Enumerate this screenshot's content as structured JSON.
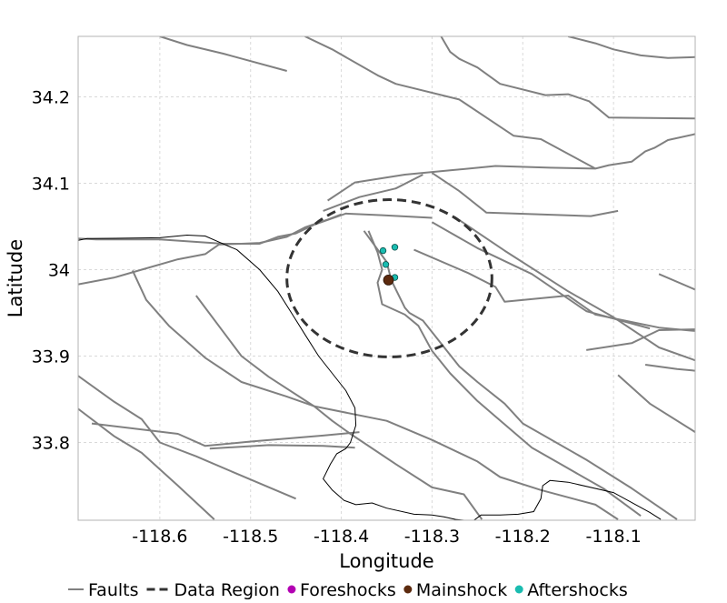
{
  "chart_data": {
    "type": "map-scatter",
    "xlabel": "Longitude",
    "ylabel": "Latitude",
    "xlim": [
      -118.69,
      -118.01
    ],
    "ylim": [
      33.71,
      34.27
    ],
    "xticks": [
      -118.6,
      -118.5,
      -118.4,
      -118.3,
      -118.2,
      -118.1
    ],
    "xtick_labels": [
      "-118.6",
      "-118.5",
      "-118.4",
      "-118.3",
      "-118.2",
      "-118.1"
    ],
    "yticks": [
      33.8,
      33.9,
      34.0,
      34.1,
      34.2
    ],
    "ytick_labels": [
      "33.8",
      "33.9",
      "34",
      "34.1",
      "34.2"
    ],
    "grid": true,
    "legend": {
      "placement": "bottom",
      "entries": [
        {
          "label": "Faults",
          "style": "solid-line",
          "color": "#808080"
        },
        {
          "label": "Data Region",
          "style": "dashed-line",
          "color": "#333333"
        },
        {
          "label": "Foreshocks",
          "style": "dot",
          "color": "#b300b3"
        },
        {
          "label": "Mainshock",
          "style": "dot",
          "color": "#5c2a0e"
        },
        {
          "label": "Aftershocks",
          "style": "dot",
          "color": "#1abcb0"
        }
      ]
    },
    "colors": {
      "faults": "#808080",
      "coastline": "#000000",
      "data_region": "#333333",
      "mainshock": "#5c2a0e",
      "aftershocks": "#1abcb0",
      "foreshocks": "#b300b3",
      "grid": "#d9d9d9"
    },
    "data_region": {
      "center": [
        -118.347,
        33.99
      ],
      "radius_lon": 0.113,
      "radius_lat": 0.091
    },
    "mainshock": [
      {
        "lon": -118.348,
        "lat": 33.988
      }
    ],
    "aftershocks": [
      {
        "lon": -118.354,
        "lat": 34.022
      },
      {
        "lon": -118.341,
        "lat": 34.026
      },
      {
        "lon": -118.351,
        "lat": 34.006
      },
      {
        "lon": -118.341,
        "lat": 33.991
      }
    ],
    "foreshocks": [],
    "coastline": [
      [
        -118.69,
        34.034
      ],
      [
        -118.68,
        34.036
      ],
      [
        -118.6,
        34.037
      ],
      [
        -118.57,
        34.04
      ],
      [
        -118.55,
        34.039
      ],
      [
        -118.535,
        34.032
      ],
      [
        -118.515,
        34.023
      ],
      [
        -118.49,
        34.0
      ],
      [
        -118.47,
        33.975
      ],
      [
        -118.455,
        33.95
      ],
      [
        -118.44,
        33.925
      ],
      [
        -118.425,
        33.9
      ],
      [
        -118.41,
        33.88
      ],
      [
        -118.395,
        33.86
      ],
      [
        -118.385,
        33.84
      ],
      [
        -118.384,
        33.82
      ],
      [
        -118.39,
        33.8
      ],
      [
        -118.395,
        33.793
      ],
      [
        -118.405,
        33.787
      ],
      [
        -118.412,
        33.775
      ],
      [
        -118.42,
        33.758
      ],
      [
        -118.41,
        33.745
      ],
      [
        -118.397,
        33.733
      ],
      [
        -118.384,
        33.728
      ],
      [
        -118.366,
        33.73
      ],
      [
        -118.35,
        33.724
      ],
      [
        -118.32,
        33.717
      ],
      [
        -118.3,
        33.716
      ],
      [
        -118.287,
        33.714
      ],
      [
        -118.274,
        33.711
      ],
      [
        -118.255,
        33.709
      ],
      [
        -118.246,
        33.716
      ],
      [
        -118.225,
        33.716
      ],
      [
        -118.205,
        33.717
      ],
      [
        -118.188,
        33.72
      ],
      [
        -118.18,
        33.735
      ],
      [
        -118.178,
        33.75
      ],
      [
        -118.17,
        33.756
      ],
      [
        -118.15,
        33.754
      ],
      [
        -118.1,
        33.742
      ],
      [
        -118.06,
        33.719
      ],
      [
        -118.048,
        33.711
      ]
    ],
    "faults": [
      [
        [
          -118.6,
          34.27
        ],
        [
          -118.57,
          34.26
        ],
        [
          -118.53,
          34.25
        ],
        [
          -118.46,
          34.23
        ]
      ],
      [
        [
          -118.44,
          34.27
        ],
        [
          -118.41,
          34.255
        ],
        [
          -118.36,
          34.225
        ],
        [
          -118.34,
          34.215
        ],
        [
          -118.27,
          34.197
        ],
        [
          -118.21,
          34.155
        ],
        [
          -118.18,
          34.151
        ],
        [
          -118.12,
          34.117
        ]
      ],
      [
        [
          -118.29,
          34.27
        ],
        [
          -118.28,
          34.252
        ],
        [
          -118.27,
          34.244
        ],
        [
          -118.25,
          34.234
        ],
        [
          -118.225,
          34.215
        ],
        [
          -118.175,
          34.202
        ],
        [
          -118.15,
          34.203
        ],
        [
          -118.127,
          34.195
        ],
        [
          -118.105,
          34.176
        ],
        [
          -118.01,
          34.175
        ]
      ],
      [
        [
          -118.15,
          34.27
        ],
        [
          -118.12,
          34.262
        ],
        [
          -118.1,
          34.255
        ],
        [
          -118.07,
          34.248
        ],
        [
          -118.04,
          34.245
        ],
        [
          -118.01,
          34.246
        ]
      ],
      [
        [
          -118.69,
          34.036
        ],
        [
          -118.67,
          34.035
        ],
        [
          -118.6,
          34.035
        ],
        [
          -118.53,
          34.03
        ],
        [
          -118.49,
          34.03
        ],
        [
          -118.47,
          34.038
        ],
        [
          -118.45,
          34.042
        ],
        [
          -118.43,
          34.052
        ],
        [
          -118.395,
          34.065
        ],
        [
          -118.355,
          34.063
        ],
        [
          -118.3,
          34.06
        ]
      ],
      [
        [
          -118.69,
          33.983
        ],
        [
          -118.65,
          33.991
        ],
        [
          -118.62,
          34.0
        ],
        [
          -118.58,
          34.012
        ],
        [
          -118.55,
          34.018
        ],
        [
          -118.535,
          34.029
        ],
        [
          -118.51,
          34.03
        ],
        [
          -118.49,
          34.031
        ],
        [
          -118.46,
          34.038
        ],
        [
          -118.44,
          34.049
        ],
        [
          -118.415,
          34.058
        ],
        [
          -118.4,
          34.064
        ]
      ],
      [
        [
          -118.415,
          34.08
        ],
        [
          -118.385,
          34.101
        ],
        [
          -118.33,
          34.11
        ],
        [
          -118.28,
          34.115
        ],
        [
          -118.23,
          34.12
        ],
        [
          -118.17,
          34.118
        ],
        [
          -118.12,
          34.117
        ],
        [
          -118.105,
          34.121
        ],
        [
          -118.08,
          34.125
        ],
        [
          -118.065,
          34.137
        ],
        [
          -118.055,
          34.141
        ],
        [
          -118.04,
          34.15
        ],
        [
          -118.01,
          34.157
        ]
      ],
      [
        [
          -118.42,
          34.068
        ],
        [
          -118.38,
          34.084
        ],
        [
          -118.34,
          34.094
        ],
        [
          -118.31,
          34.11
        ]
      ],
      [
        [
          -118.3,
          34.112
        ],
        [
          -118.27,
          34.091
        ],
        [
          -118.24,
          34.066
        ],
        [
          -118.18,
          34.064
        ],
        [
          -118.125,
          34.062
        ],
        [
          -118.095,
          34.068
        ]
      ],
      [
        [
          -118.375,
          34.045
        ],
        [
          -118.35,
          34.009
        ],
        [
          -118.345,
          33.988
        ],
        [
          -118.33,
          33.956
        ],
        [
          -118.325,
          33.95
        ],
        [
          -118.31,
          33.941
        ],
        [
          -118.27,
          33.888
        ],
        [
          -118.25,
          33.87
        ],
        [
          -118.22,
          33.845
        ],
        [
          -118.2,
          33.822
        ],
        [
          -118.13,
          33.78
        ],
        [
          -118.08,
          33.747
        ],
        [
          -118.03,
          33.711
        ]
      ],
      [
        [
          -118.37,
          34.045
        ],
        [
          -118.36,
          34.02
        ],
        [
          -118.355,
          34.0
        ],
        [
          -118.36,
          33.985
        ],
        [
          -118.355,
          33.96
        ],
        [
          -118.33,
          33.948
        ],
        [
          -118.315,
          33.935
        ],
        [
          -118.3,
          33.906
        ],
        [
          -118.28,
          33.88
        ],
        [
          -118.25,
          33.848
        ],
        [
          -118.23,
          33.83
        ],
        [
          -118.19,
          33.794
        ],
        [
          -118.16,
          33.776
        ],
        [
          -118.11,
          33.746
        ],
        [
          -118.07,
          33.715
        ]
      ],
      [
        [
          -118.32,
          34.023
        ],
        [
          -118.26,
          33.996
        ],
        [
          -118.23,
          33.98
        ],
        [
          -118.22,
          33.963
        ],
        [
          -118.15,
          33.97
        ],
        [
          -118.12,
          33.948
        ],
        [
          -118.05,
          33.933
        ],
        [
          -118.01,
          33.929
        ]
      ],
      [
        [
          -118.3,
          34.055
        ],
        [
          -118.25,
          34.025
        ],
        [
          -118.19,
          33.995
        ],
        [
          -118.13,
          33.952
        ],
        [
          -118.06,
          33.932
        ]
      ],
      [
        [
          -118.275,
          34.061
        ],
        [
          -118.22,
          34.022
        ],
        [
          -118.15,
          33.975
        ],
        [
          -118.1,
          33.945
        ],
        [
          -118.05,
          33.91
        ],
        [
          -118.01,
          33.895
        ]
      ],
      [
        [
          -118.675,
          33.822
        ],
        [
          -118.58,
          33.81
        ],
        [
          -118.55,
          33.796
        ],
        [
          -118.5,
          33.801
        ],
        [
          -118.42,
          33.808
        ],
        [
          -118.38,
          33.812
        ]
      ],
      [
        [
          -118.545,
          33.793
        ],
        [
          -118.48,
          33.797
        ],
        [
          -118.42,
          33.796
        ],
        [
          -118.385,
          33.794
        ]
      ],
      [
        [
          -118.69,
          33.877
        ],
        [
          -118.65,
          33.847
        ],
        [
          -118.62,
          33.827
        ],
        [
          -118.6,
          33.8
        ],
        [
          -118.56,
          33.784
        ],
        [
          -118.52,
          33.766
        ],
        [
          -118.45,
          33.735
        ]
      ],
      [
        [
          -118.69,
          33.839
        ],
        [
          -118.65,
          33.807
        ],
        [
          -118.62,
          33.788
        ],
        [
          -118.58,
          33.75
        ],
        [
          -118.54,
          33.711
        ]
      ],
      [
        [
          -118.63,
          33.999
        ],
        [
          -118.615,
          33.965
        ],
        [
          -118.59,
          33.935
        ],
        [
          -118.55,
          33.898
        ],
        [
          -118.51,
          33.87
        ],
        [
          -118.46,
          33.853
        ],
        [
          -118.43,
          33.842
        ],
        [
          -118.35,
          33.825
        ],
        [
          -118.3,
          33.803
        ],
        [
          -118.25,
          33.778
        ],
        [
          -118.225,
          33.76
        ],
        [
          -118.18,
          33.745
        ],
        [
          -118.12,
          33.728
        ],
        [
          -118.095,
          33.711
        ]
      ],
      [
        [
          -118.56,
          33.97
        ],
        [
          -118.51,
          33.9
        ],
        [
          -118.48,
          33.876
        ],
        [
          -118.43,
          33.842
        ],
        [
          -118.41,
          33.825
        ],
        [
          -118.39,
          33.81
        ],
        [
          -118.34,
          33.775
        ],
        [
          -118.3,
          33.748
        ],
        [
          -118.265,
          33.74
        ],
        [
          -118.245,
          33.711
        ]
      ],
      [
        [
          -118.13,
          33.907
        ],
        [
          -118.08,
          33.915
        ],
        [
          -118.05,
          33.93
        ],
        [
          -118.01,
          33.931
        ]
      ],
      [
        [
          -118.05,
          33.995
        ],
        [
          -118.01,
          33.977
        ]
      ],
      [
        [
          -118.065,
          33.89
        ],
        [
          -118.03,
          33.885
        ],
        [
          -118.01,
          33.883
        ]
      ],
      [
        [
          -118.095,
          33.878
        ],
        [
          -118.06,
          33.845
        ],
        [
          -118.01,
          33.812
        ]
      ]
    ]
  }
}
